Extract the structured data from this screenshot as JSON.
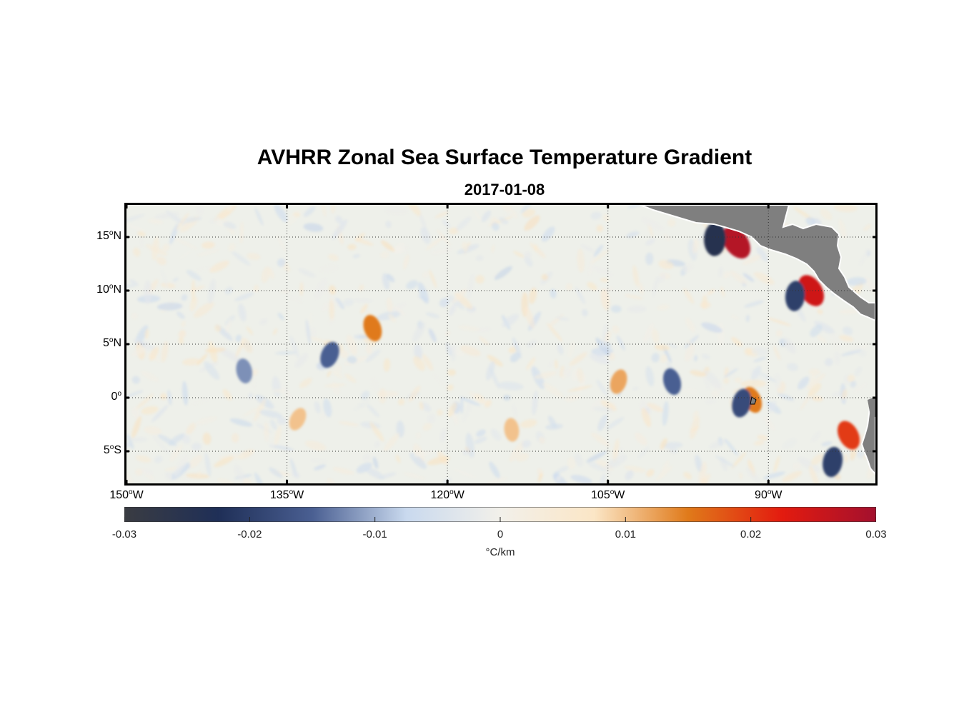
{
  "title": "AVHRR Zonal Sea Surface Temperature Gradient",
  "subtitle": "2017-01-08",
  "map": {
    "lon_range": [
      -150,
      -80
    ],
    "lat_range": [
      -8,
      18
    ],
    "grid": true,
    "land_color": "#7f7f7f",
    "ocean_neutral_color": "#eef0ea"
  },
  "y_ticks": [
    {
      "num": "15",
      "sup": "o",
      "hem": "N",
      "lat": 15
    },
    {
      "num": "10",
      "sup": "o",
      "hem": "N",
      "lat": 10
    },
    {
      "num": "5",
      "sup": "o",
      "hem": "N",
      "lat": 5
    },
    {
      "num": "0",
      "sup": "o",
      "hem": "",
      "lat": 0
    },
    {
      "num": "5",
      "sup": "o",
      "hem": "S",
      "lat": -5
    }
  ],
  "x_ticks": [
    {
      "num": "150",
      "sup": "o",
      "hem": "W",
      "lon": -150
    },
    {
      "num": "135",
      "sup": "o",
      "hem": "W",
      "lon": -135
    },
    {
      "num": "120",
      "sup": "o",
      "hem": "W",
      "lon": -120
    },
    {
      "num": "105",
      "sup": "o",
      "hem": "W",
      "lon": -105
    },
    {
      "num": "90",
      "sup": "o",
      "hem": "W",
      "lon": -90
    }
  ],
  "colorbar": {
    "ticks": [
      "-0.03",
      "-0.02",
      "-0.01",
      "0",
      "0.01",
      "0.02",
      "0.03"
    ],
    "unit": "°C/km",
    "range": [
      -0.03,
      0.03
    ],
    "colors": [
      "#3a3c42",
      "#1f2f57",
      "#4a5f92",
      "#c9d9ee",
      "#f2f0ea",
      "#fbe6c6",
      "#e07a1a",
      "#e31b0f",
      "#a3102e"
    ]
  },
  "chart_data": {
    "type": "heatmap",
    "title": "AVHRR Zonal Sea Surface Temperature Gradient",
    "subtitle": "2017-01-08",
    "xlim": [
      -150,
      -80
    ],
    "ylim": [
      -8,
      18
    ],
    "colorbar_range": [
      -0.03,
      0.03
    ],
    "colorbar_label": "°C/km",
    "features": [
      {
        "lon": -93,
        "lat": 14.5,
        "value": 0.028
      },
      {
        "lon": -95,
        "lat": 14.8,
        "value": -0.025
      },
      {
        "lon": -86,
        "lat": 10,
        "value": 0.025
      },
      {
        "lon": -87.5,
        "lat": 9.5,
        "value": -0.02
      },
      {
        "lon": -82.5,
        "lat": -3.5,
        "value": 0.02
      },
      {
        "lon": -84,
        "lat": -6,
        "value": -0.02
      },
      {
        "lon": -91.5,
        "lat": -0.2,
        "value": 0.015
      },
      {
        "lon": -92.5,
        "lat": -0.5,
        "value": -0.018
      },
      {
        "lon": -127,
        "lat": 6.5,
        "value": 0.015
      },
      {
        "lon": -104,
        "lat": 1.5,
        "value": 0.012
      },
      {
        "lon": -99,
        "lat": 1.5,
        "value": -0.015
      },
      {
        "lon": -131,
        "lat": 4,
        "value": -0.015
      },
      {
        "lon": -139,
        "lat": 2.5,
        "value": -0.012
      },
      {
        "lon": -134,
        "lat": -2,
        "value": 0.01
      },
      {
        "lon": -114,
        "lat": -3,
        "value": 0.01
      }
    ]
  }
}
